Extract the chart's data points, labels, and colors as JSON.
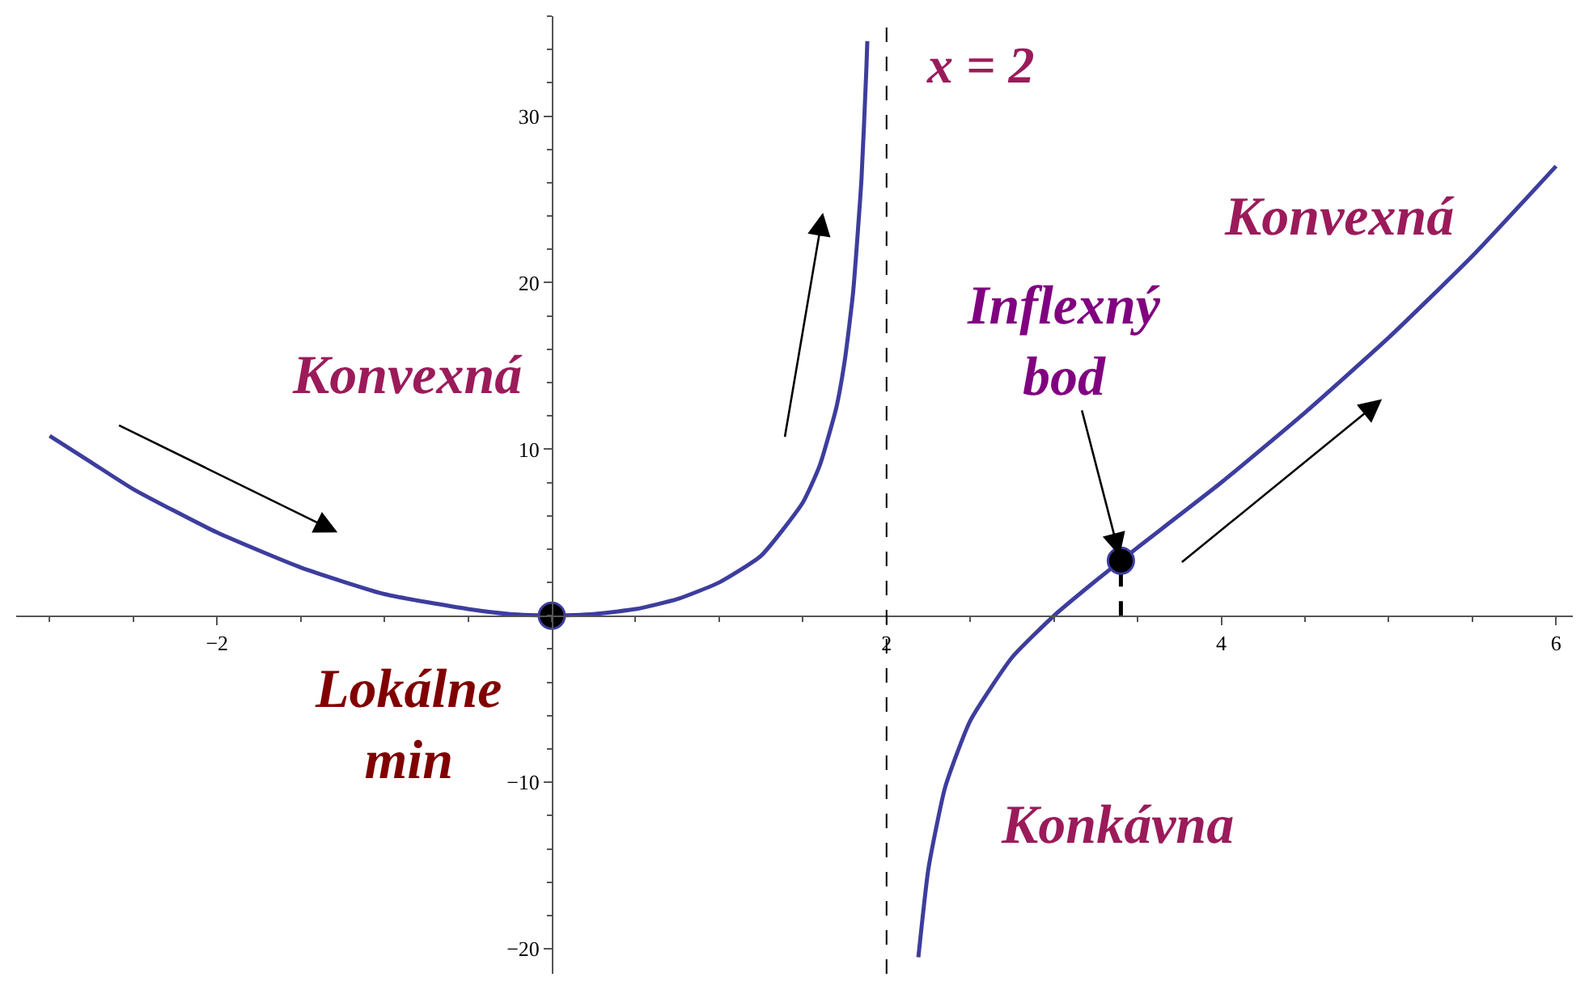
{
  "chart_data": {
    "type": "line",
    "xlim": [
      -3.2,
      6.1
    ],
    "ylim": [
      -21.5,
      36
    ],
    "xticks": [
      {
        "value": -2,
        "label": "−2"
      },
      2,
      4,
      6
    ],
    "yticks": [
      {
        "value": -20,
        "label": "−20"
      },
      {
        "value": -10,
        "label": "−10"
      },
      10,
      20,
      30
    ],
    "series": [
      {
        "color": "#3d3d9e",
        "marker": "none",
        "line_style": "solid",
        "x": [
          -3,
          -2.75,
          -2.5,
          -2,
          -1.5,
          -1,
          -0.5,
          -0.25,
          0,
          0.25,
          0.5,
          0.75,
          1,
          1.25,
          1.5,
          1.6,
          1.7,
          1.75,
          1.8,
          1.85,
          1.88,
          1.885,
          2,
          2.19,
          2.25,
          2.35,
          2.5,
          2.75,
          3,
          3.25,
          3.4,
          3.5,
          4,
          4.5,
          5,
          5.5,
          6
        ],
        "values": [
          10.8,
          9.2,
          7.6,
          5,
          2.9,
          1.3,
          0.4,
          0.1,
          0,
          0.1,
          0.4,
          1,
          2,
          3.6,
          6.8,
          9,
          12.5,
          15.3,
          19.4,
          26.2,
          33,
          34.5,
          null,
          -20.5,
          -15.2,
          -10.3,
          -6.3,
          -2.5,
          0,
          2.1,
          3.3,
          4.1,
          8,
          12.2,
          16.7,
          21.6,
          27
        ]
      },
      {
        "type": "scatter",
        "color": "#000000",
        "marker": "circle",
        "x": [
          0,
          3.4
        ],
        "values": [
          0,
          3.3
        ]
      },
      {
        "type": "line",
        "color": "#000000",
        "marker": "none",
        "line_style": "dashed",
        "x": [
          3.4,
          3.4
        ],
        "values": [
          0,
          3.3
        ]
      }
    ],
    "ref_lines": [
      {
        "axis": "x",
        "value": 2,
        "label": "x = 2",
        "color": "#000000",
        "line_style": "dashed"
      }
    ],
    "annotations": [
      "Konvexná",
      "Lokálne\nmin",
      {
        "text": "Inflexný\nbod",
        "x": 3.4,
        "y": 3.3
      },
      "Konvexná",
      "Konkávna"
    ]
  }
}
